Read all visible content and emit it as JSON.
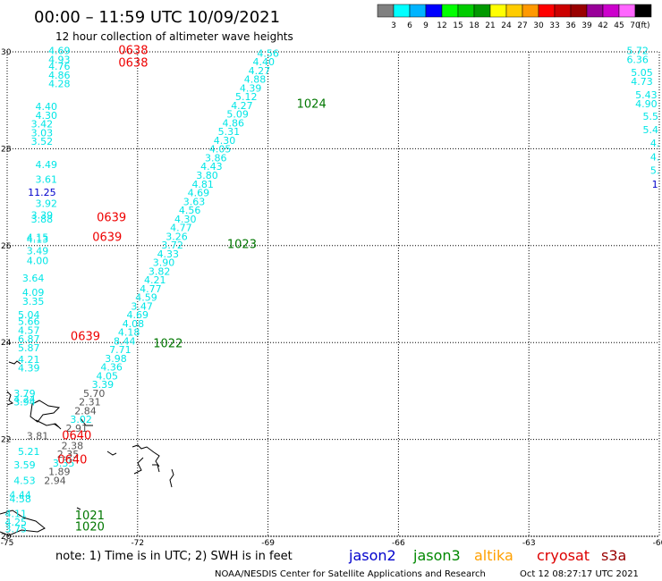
{
  "header": {
    "title": "00:00 – 11:59 UTC 10/09/2021",
    "subtitle": "12 hour collection of altimeter wave heights"
  },
  "scale": {
    "colors": [
      "#808080",
      "#00ffff",
      "#00b4ff",
      "#0000ff",
      "#00ff00",
      "#00cc00",
      "#009900",
      "#ffff00",
      "#ffcc00",
      "#ff9900",
      "#ff0000",
      "#cc0000",
      "#990000",
      "#990099",
      "#cc00cc",
      "#ff66ff",
      "#000000"
    ],
    "labels": [
      "3",
      "6",
      "9",
      "12",
      "15",
      "18",
      "21",
      "24",
      "27",
      "30",
      "33",
      "36",
      "39",
      "42",
      "45",
      "70"
    ],
    "unit": "(ft)"
  },
  "footer": {
    "note": "note:  1) Time is in UTC; 2) SWH is in feet",
    "credit": "NOAA/NESDIS Center for Satellite Applications and Research",
    "timestamp": "Oct 12 08:27:17 UTC 2021"
  },
  "legend": [
    {
      "name": "jason2",
      "color": "#0000cc"
    },
    {
      "name": "jason3",
      "color": "#008800"
    },
    {
      "name": "altika",
      "color": "#ffa000"
    },
    {
      "name": "cryosat",
      "color": "#dd0000"
    },
    {
      "name": "s3a",
      "color": "#990000"
    }
  ],
  "chart_data": {
    "type": "scatter",
    "xlim": [
      -75,
      -60
    ],
    "ylim": [
      20,
      30
    ],
    "x_ticks": [
      "-75",
      "-72",
      "-69",
      "-66",
      "-63",
      "-60"
    ],
    "y_ticks": [
      "20",
      "22",
      "24",
      "26",
      "28",
      "30"
    ],
    "grid": true,
    "track_colors": {
      "cyan": "#00e6e6",
      "blue": "#0000cc",
      "gray": "#555555",
      "red": "#ee0000",
      "green": "#007700"
    },
    "tracks": [
      {
        "name": "pass 1024",
        "label": "1024",
        "label_x": -68.0,
        "label_y": 28.85,
        "color": "green",
        "points": [
          {
            "x": -69.0,
            "y": 29.9,
            "v": "4.56",
            "c": "cyan"
          },
          {
            "x": -69.1,
            "y": 29.72,
            "v": "4.40",
            "c": "cyan"
          },
          {
            "x": -69.2,
            "y": 29.54,
            "v": "4.27",
            "c": "cyan"
          },
          {
            "x": -69.3,
            "y": 29.36,
            "v": "4.88",
            "c": "cyan"
          },
          {
            "x": -69.4,
            "y": 29.18,
            "v": "4.39",
            "c": "cyan"
          },
          {
            "x": -69.5,
            "y": 29.0,
            "v": "5.12",
            "c": "cyan"
          },
          {
            "x": -69.6,
            "y": 28.82,
            "v": "4.27",
            "c": "cyan"
          },
          {
            "x": -69.7,
            "y": 28.64,
            "v": "5.09",
            "c": "cyan"
          },
          {
            "x": -69.8,
            "y": 28.46,
            "v": "4.86",
            "c": "cyan"
          },
          {
            "x": -69.9,
            "y": 28.28,
            "v": "5.31",
            "c": "cyan"
          },
          {
            "x": -70.0,
            "y": 28.1,
            "v": "4.30",
            "c": "cyan"
          },
          {
            "x": -70.1,
            "y": 27.92,
            "v": "4.05",
            "c": "cyan"
          },
          {
            "x": -70.2,
            "y": 27.74,
            "v": "3.86",
            "c": "cyan"
          },
          {
            "x": -70.3,
            "y": 27.56,
            "v": "4.43",
            "c": "cyan"
          },
          {
            "x": -70.4,
            "y": 27.38,
            "v": "3.80",
            "c": "cyan"
          },
          {
            "x": -70.5,
            "y": 27.2,
            "v": "4.81",
            "c": "cyan"
          },
          {
            "x": -70.6,
            "y": 27.02,
            "v": "4.69",
            "c": "cyan"
          },
          {
            "x": -70.7,
            "y": 26.84,
            "v": "3.63",
            "c": "cyan"
          },
          {
            "x": -70.8,
            "y": 26.66,
            "v": "4.56",
            "c": "cyan"
          },
          {
            "x": -70.9,
            "y": 26.48,
            "v": "4.30",
            "c": "cyan"
          }
        ]
      },
      {
        "name": "pass 1023",
        "label": "1023",
        "label_x": -69.6,
        "label_y": 25.95,
        "color": "green",
        "points": [
          {
            "x": -71.0,
            "y": 26.3,
            "v": "4.77",
            "c": "cyan"
          },
          {
            "x": -71.1,
            "y": 26.12,
            "v": "3.26",
            "c": "cyan"
          },
          {
            "x": -71.2,
            "y": 25.94,
            "v": "3.72",
            "c": "cyan"
          },
          {
            "x": -71.3,
            "y": 25.76,
            "v": "4.33",
            "c": "cyan"
          },
          {
            "x": -71.4,
            "y": 25.58,
            "v": "3.90",
            "c": "cyan"
          },
          {
            "x": -71.5,
            "y": 25.4,
            "v": "3.82",
            "c": "cyan"
          },
          {
            "x": -71.6,
            "y": 25.22,
            "v": "4.21",
            "c": "cyan"
          },
          {
            "x": -71.7,
            "y": 25.04,
            "v": "4.77",
            "c": "cyan"
          },
          {
            "x": -71.8,
            "y": 24.86,
            "v": "4.59",
            "c": "cyan"
          },
          {
            "x": -71.9,
            "y": 24.68,
            "v": "3.47",
            "c": "cyan"
          },
          {
            "x": -72.0,
            "y": 24.5,
            "v": "4.69",
            "c": "cyan"
          },
          {
            "x": -72.1,
            "y": 24.32,
            "v": "4.08",
            "c": "cyan"
          }
        ]
      },
      {
        "name": "pass 1022",
        "label": "1022",
        "label_x": -71.3,
        "label_y": 23.9,
        "color": "green",
        "points": [
          {
            "x": -72.2,
            "y": 24.14,
            "v": "4.18",
            "c": "cyan"
          },
          {
            "x": -72.3,
            "y": 23.96,
            "v": "8.44",
            "c": "cyan"
          },
          {
            "x": -72.4,
            "y": 23.78,
            "v": "7.71",
            "c": "cyan"
          },
          {
            "x": -72.5,
            "y": 23.6,
            "v": "3.98",
            "c": "cyan"
          },
          {
            "x": -72.6,
            "y": 23.42,
            "v": "4.36",
            "c": "cyan"
          },
          {
            "x": -72.7,
            "y": 23.24,
            "v": "4.05",
            "c": "cyan"
          },
          {
            "x": -72.8,
            "y": 23.06,
            "v": "3.39",
            "c": "cyan"
          }
        ]
      },
      {
        "name": "pass 1021",
        "label": "1021",
        "label_x": -73.1,
        "label_y": 20.35,
        "color": "green",
        "points": [
          {
            "x": -73.0,
            "y": 22.88,
            "v": "5.70",
            "c": "gray"
          },
          {
            "x": -73.1,
            "y": 22.7,
            "v": "2.31",
            "c": "gray"
          },
          {
            "x": -73.2,
            "y": 22.52,
            "v": "2.84",
            "c": "gray"
          },
          {
            "x": -73.3,
            "y": 22.34,
            "v": "3.02",
            "c": "cyan"
          },
          {
            "x": -73.4,
            "y": 22.16,
            "v": "2.91",
            "c": "gray"
          },
          {
            "x": -73.5,
            "y": 21.8,
            "v": "2.38",
            "c": "gray"
          },
          {
            "x": -73.6,
            "y": 21.62,
            "v": "2.35",
            "c": "gray"
          },
          {
            "x": -73.7,
            "y": 21.44,
            "v": "3.35",
            "c": "cyan"
          },
          {
            "x": -73.8,
            "y": 21.26,
            "v": "1.89",
            "c": "gray"
          },
          {
            "x": -73.9,
            "y": 21.08,
            "v": "2.94",
            "c": "gray"
          }
        ]
      },
      {
        "name": "pass 1020",
        "label": "1020",
        "label_x": -73.1,
        "label_y": 20.12,
        "color": "green",
        "points": []
      },
      {
        "name": "pass 0638",
        "label": "0638",
        "label_x": -72.1,
        "label_y": 29.95,
        "color": "red",
        "points": [
          {
            "x": -73.8,
            "y": 29.95,
            "v": "4.69",
            "c": "cyan"
          },
          {
            "x": -73.8,
            "y": 29.77,
            "v": "4.93",
            "c": "cyan"
          },
          {
            "x": -73.8,
            "y": 29.63,
            "v": "4.76",
            "c": "cyan"
          },
          {
            "x": -73.8,
            "y": 29.45,
            "v": "4.86",
            "c": "cyan"
          },
          {
            "x": -73.8,
            "y": 29.27,
            "v": "4.28",
            "c": "cyan"
          }
        ]
      },
      {
        "name": "pass 0638b",
        "label": "0638",
        "label_x": -72.1,
        "label_y": 29.7,
        "color": "red",
        "points": []
      },
      {
        "name": "pass 0639",
        "label": "0639",
        "label_x": -72.6,
        "label_y": 26.5,
        "color": "red",
        "points": [
          {
            "x": -74.1,
            "y": 28.8,
            "v": "4.40",
            "c": "cyan"
          },
          {
            "x": -74.1,
            "y": 28.62,
            "v": "4.30",
            "c": "cyan"
          },
          {
            "x": -74.2,
            "y": 28.44,
            "v": "3.42",
            "c": "cyan"
          },
          {
            "x": -74.2,
            "y": 28.26,
            "v": "3.03",
            "c": "cyan"
          },
          {
            "x": -74.2,
            "y": 28.08,
            "v": "3.52",
            "c": "cyan"
          },
          {
            "x": -74.1,
            "y": 27.6,
            "v": "4.49",
            "c": "cyan"
          },
          {
            "x": -74.1,
            "y": 27.3,
            "v": "3.61",
            "c": "cyan"
          },
          {
            "x": -74.2,
            "y": 27.03,
            "v": "11.25",
            "c": "blue"
          },
          {
            "x": -74.1,
            "y": 26.8,
            "v": "3.92",
            "c": "cyan"
          },
          {
            "x": -74.2,
            "y": 26.56,
            "v": "3.39",
            "c": "cyan"
          },
          {
            "x": -74.2,
            "y": 26.48,
            "v": "3.88",
            "c": "cyan"
          },
          {
            "x": -74.3,
            "y": 26.1,
            "v": "4.15",
            "c": "cyan"
          },
          {
            "x": -74.3,
            "y": 26.06,
            "v": "4.13",
            "c": "cyan"
          },
          {
            "x": -74.3,
            "y": 25.82,
            "v": "3.49",
            "c": "cyan"
          },
          {
            "x": -74.3,
            "y": 25.62,
            "v": "4.00",
            "c": "cyan"
          },
          {
            "x": -74.4,
            "y": 25.26,
            "v": "3.64",
            "c": "cyan"
          },
          {
            "x": -74.4,
            "y": 24.96,
            "v": "4.09",
            "c": "cyan"
          },
          {
            "x": -74.4,
            "y": 24.78,
            "v": "3.35",
            "c": "cyan"
          },
          {
            "x": -74.5,
            "y": 24.5,
            "v": "5.04",
            "c": "cyan"
          },
          {
            "x": -74.5,
            "y": 24.36,
            "v": "5.66",
            "c": "cyan"
          },
          {
            "x": -74.5,
            "y": 24.18,
            "v": "4.57",
            "c": "cyan"
          },
          {
            "x": -74.5,
            "y": 24.0,
            "v": "6.87",
            "c": "cyan"
          }
        ]
      },
      {
        "name": "pass 0639b",
        "label": "0639",
        "label_x": -72.7,
        "label_y": 26.1,
        "color": "red",
        "points": []
      },
      {
        "name": "pass 0639c",
        "label": "0639",
        "label_x": -73.2,
        "label_y": 24.05,
        "color": "red",
        "points": [
          {
            "x": -74.5,
            "y": 23.82,
            "v": "5.87",
            "c": "cyan"
          },
          {
            "x": -74.5,
            "y": 23.58,
            "v": "4.21",
            "c": "cyan"
          },
          {
            "x": -74.5,
            "y": 23.4,
            "v": "4.39",
            "c": "cyan"
          },
          {
            "x": -74.6,
            "y": 22.88,
            "v": "3.79",
            "c": "cyan"
          },
          {
            "x": -74.6,
            "y": 22.76,
            "v": "4.24",
            "c": "cyan"
          },
          {
            "x": -74.6,
            "y": 22.7,
            "v": "3.94",
            "c": "cyan"
          }
        ]
      },
      {
        "name": "pass 0640",
        "label": "0640",
        "label_x": -73.4,
        "label_y": 22.0,
        "color": "red",
        "points": [
          {
            "x": -74.3,
            "y": 22.0,
            "v": "3.81",
            "c": "gray"
          },
          {
            "x": -74.5,
            "y": 21.68,
            "v": "5.21",
            "c": "cyan"
          },
          {
            "x": -74.6,
            "y": 21.4,
            "v": "3.59",
            "c": "cyan"
          },
          {
            "x": -74.6,
            "y": 21.08,
            "v": "4.53",
            "c": "cyan"
          },
          {
            "x": -74.7,
            "y": 20.78,
            "v": "4.44",
            "c": "cyan"
          },
          {
            "x": -74.7,
            "y": 20.7,
            "v": "4.58",
            "c": "cyan"
          },
          {
            "x": -74.8,
            "y": 20.4,
            "v": "4.11",
            "c": "cyan"
          },
          {
            "x": -74.8,
            "y": 20.22,
            "v": "4.25",
            "c": "cyan"
          },
          {
            "x": -74.8,
            "y": 20.08,
            "v": "3.75",
            "c": "cyan"
          }
        ]
      },
      {
        "name": "pass 0640b",
        "label": "0640",
        "label_x": -73.5,
        "label_y": 21.5,
        "color": "red",
        "points": []
      },
      {
        "name": "right edge",
        "label": "",
        "label_x": -60,
        "label_y": 29,
        "color": "cyan",
        "points": [
          {
            "x": -60.5,
            "y": 29.95,
            "v": "5.72",
            "c": "cyan"
          },
          {
            "x": -60.5,
            "y": 29.77,
            "v": "6.36",
            "c": "cyan"
          },
          {
            "x": -60.4,
            "y": 29.5,
            "v": "5.05",
            "c": "cyan"
          },
          {
            "x": -60.4,
            "y": 29.32,
            "v": "4.73",
            "c": "cyan"
          },
          {
            "x": -60.3,
            "y": 29.04,
            "v": "5.43",
            "c": "cyan"
          },
          {
            "x": -60.3,
            "y": 28.86,
            "v": "4.90",
            "c": "cyan"
          },
          {
            "x": -60.2,
            "y": 28.6,
            "v": "5.5",
            "c": "cyan"
          },
          {
            "x": -60.2,
            "y": 28.32,
            "v": "5.4",
            "c": "cyan"
          },
          {
            "x": -60.1,
            "y": 28.04,
            "v": "4.",
            "c": "cyan"
          },
          {
            "x": -60.1,
            "y": 27.76,
            "v": "4.",
            "c": "cyan"
          },
          {
            "x": -60.1,
            "y": 27.48,
            "v": "5.",
            "c": "cyan"
          },
          {
            "x": -60.1,
            "y": 27.2,
            "v": "1",
            "c": "blue"
          }
        ]
      }
    ]
  }
}
